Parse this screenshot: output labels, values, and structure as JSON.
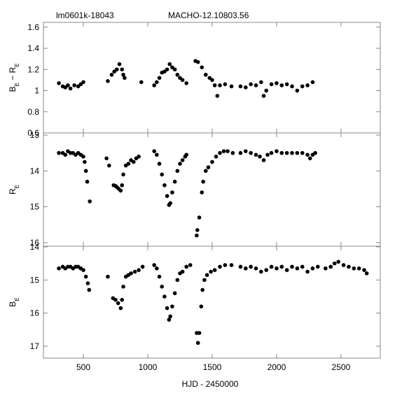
{
  "chart_data": [
    {
      "type": "scatter",
      "title_left": "lm0601k-18043",
      "title_right": "MACHO-12.10803.56",
      "y_label": [
        "B",
        "E",
        " − R",
        "E"
      ],
      "color": "#000000",
      "xlim": [
        190,
        2805
      ],
      "ylim": [
        0.6,
        1.645
      ],
      "yticks": [
        0.6,
        0.8,
        1,
        1.2,
        1.4,
        1.6
      ],
      "x": [
        310,
        340,
        360,
        380,
        400,
        430,
        460,
        480,
        500,
        690,
        720,
        740,
        760,
        780,
        800,
        810,
        820,
        950,
        1050,
        1070,
        1090,
        1110,
        1130,
        1150,
        1170,
        1190,
        1210,
        1230,
        1250,
        1270,
        1300,
        1370,
        1390,
        1420,
        1450,
        1480,
        1500,
        1520,
        1540,
        1560,
        1600,
        1650,
        1720,
        1760,
        1800,
        1840,
        1880,
        1900,
        1920,
        1960,
        2000,
        2040,
        2080,
        2120,
        2160,
        2200,
        2240,
        2280
      ],
      "values": [
        1.07,
        1.04,
        1.03,
        1.05,
        1.02,
        1.05,
        1.04,
        1.06,
        1.08,
        1.09,
        1.15,
        1.18,
        1.2,
        1.25,
        1.2,
        1.15,
        1.12,
        1.08,
        1.05,
        1.08,
        1.12,
        1.17,
        1.18,
        1.2,
        1.25,
        1.22,
        1.2,
        1.15,
        1.12,
        1.1,
        1.07,
        1.28,
        1.27,
        1.22,
        1.15,
        1.12,
        1.1,
        1.05,
        0.95,
        1.05,
        1.06,
        1.04,
        1.04,
        1.03,
        1.06,
        1.05,
        1.08,
        0.95,
        1.0,
        1.06,
        1.07,
        1.05,
        1.06,
        1.04,
        1.0,
        1.04,
        1.05,
        1.08
      ]
    },
    {
      "type": "scatter",
      "y_label": [
        "R",
        "E"
      ],
      "color": "#000000",
      "xlim": [
        190,
        2805
      ],
      "ylim": [
        16.1,
        12.94
      ],
      "yticks": [
        13,
        14,
        15,
        16
      ],
      "x": [
        310,
        340,
        360,
        380,
        400,
        420,
        440,
        460,
        480,
        500,
        510,
        520,
        530,
        550,
        680,
        700,
        735,
        750,
        760,
        775,
        790,
        800,
        810,
        830,
        850,
        870,
        890,
        910,
        930,
        1050,
        1070,
        1090,
        1110,
        1130,
        1150,
        1165,
        1175,
        1190,
        1210,
        1230,
        1250,
        1270,
        1290,
        1300,
        1380,
        1385,
        1400,
        1420,
        1430,
        1450,
        1470,
        1500,
        1530,
        1560,
        1590,
        1620,
        1660,
        1720,
        1760,
        1800,
        1840,
        1870,
        1900,
        1930,
        1960,
        2000,
        2040,
        2080,
        2120,
        2160,
        2200,
        2240,
        2260,
        2280,
        2300
      ],
      "values": [
        13.5,
        13.5,
        13.55,
        13.45,
        13.5,
        13.5,
        13.55,
        13.5,
        13.55,
        13.6,
        13.75,
        14.0,
        14.3,
        14.85,
        13.65,
        13.85,
        14.4,
        14.42,
        14.45,
        14.5,
        14.55,
        14.4,
        14.1,
        13.85,
        13.8,
        13.7,
        13.75,
        13.65,
        13.6,
        13.45,
        13.55,
        13.8,
        14.1,
        14.4,
        14.7,
        14.95,
        14.9,
        14.6,
        14.3,
        14.0,
        13.8,
        13.7,
        13.6,
        13.55,
        15.8,
        15.65,
        15.3,
        14.6,
        14.3,
        14.0,
        13.9,
        13.75,
        13.6,
        13.5,
        13.45,
        13.45,
        13.5,
        13.5,
        13.45,
        13.5,
        13.55,
        13.6,
        13.7,
        13.55,
        13.5,
        13.45,
        13.5,
        13.5,
        13.5,
        13.5,
        13.5,
        13.55,
        13.65,
        13.55,
        13.5
      ]
    },
    {
      "type": "scatter",
      "y_label": [
        "B",
        "E"
      ],
      "x_label": "HJD - 2450000",
      "color": "#000000",
      "xlim": [
        190,
        2805
      ],
      "xticks": [
        500,
        1000,
        1500,
        2000,
        2500
      ],
      "ylim": [
        17.36,
        13.98
      ],
      "yticks": [
        14,
        15,
        16,
        17
      ],
      "x": [
        310,
        340,
        360,
        380,
        400,
        420,
        440,
        460,
        480,
        500,
        520,
        535,
        545,
        690,
        730,
        750,
        770,
        790,
        800,
        810,
        830,
        850,
        870,
        900,
        930,
        960,
        1050,
        1070,
        1090,
        1110,
        1130,
        1150,
        1165,
        1175,
        1190,
        1210,
        1230,
        1250,
        1270,
        1300,
        1330,
        1380,
        1390,
        1400,
        1415,
        1425,
        1440,
        1460,
        1490,
        1520,
        1560,
        1600,
        1650,
        1720,
        1760,
        1800,
        1840,
        1880,
        1920,
        1960,
        2000,
        2040,
        2080,
        2120,
        2160,
        2200,
        2240,
        2280,
        2320,
        2380,
        2420,
        2450,
        2480,
        2520,
        2560,
        2600,
        2640,
        2680,
        2700
      ],
      "values": [
        14.65,
        14.6,
        14.65,
        14.6,
        14.6,
        14.65,
        14.6,
        14.6,
        14.65,
        14.7,
        14.9,
        15.1,
        15.3,
        14.9,
        15.55,
        15.6,
        15.7,
        15.85,
        15.6,
        15.2,
        14.9,
        14.85,
        14.8,
        14.75,
        14.7,
        14.6,
        14.55,
        14.65,
        14.9,
        15.2,
        15.5,
        15.85,
        16.2,
        16.1,
        15.8,
        15.4,
        15.0,
        14.8,
        14.75,
        14.6,
        14.55,
        16.6,
        16.9,
        16.6,
        15.8,
        15.3,
        15.0,
        14.85,
        14.75,
        14.7,
        14.6,
        14.55,
        14.55,
        14.6,
        14.65,
        14.6,
        14.65,
        14.75,
        14.7,
        14.6,
        14.65,
        14.6,
        14.7,
        14.6,
        14.65,
        14.6,
        14.75,
        14.65,
        14.6,
        14.65,
        14.6,
        14.5,
        14.45,
        14.55,
        14.6,
        14.65,
        14.65,
        14.7,
        14.8
      ]
    }
  ]
}
